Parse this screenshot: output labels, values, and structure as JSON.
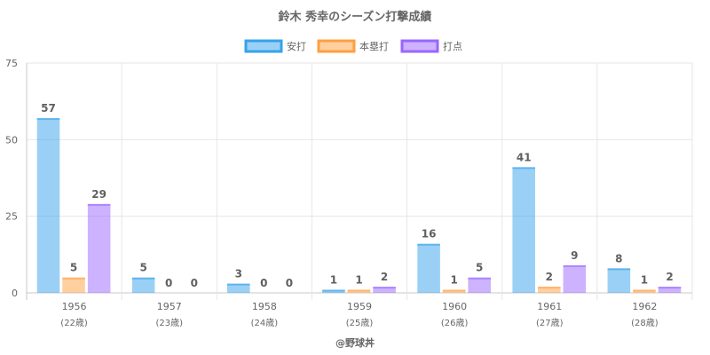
{
  "chart_data": {
    "type": "bar",
    "title": "鈴木 秀幸のシーズン打撃成績",
    "categories": [
      "1956",
      "1957",
      "1958",
      "1959",
      "1960",
      "1961",
      "1962"
    ],
    "sub_labels": [
      "(22歳)",
      "(23歳)",
      "(24歳)",
      "(25歳)",
      "(26歳)",
      "(27歳)",
      "(28歳)"
    ],
    "series": [
      {
        "name": "安打",
        "values": [
          57,
          5,
          3,
          1,
          16,
          41,
          8
        ],
        "color": "#36a2eb"
      },
      {
        "name": "本塁打",
        "values": [
          5,
          0,
          0,
          1,
          1,
          2,
          1
        ],
        "color": "#ff9f40"
      },
      {
        "name": "打点",
        "values": [
          29,
          0,
          0,
          2,
          5,
          9,
          2
        ],
        "color": "#9966ff"
      }
    ],
    "ylim": [
      0,
      75
    ],
    "y_ticks": [
      "0",
      "25",
      "50",
      "75"
    ],
    "grid": true,
    "legend_position": "top"
  },
  "footer": {
    "credit": "@野球丼"
  }
}
